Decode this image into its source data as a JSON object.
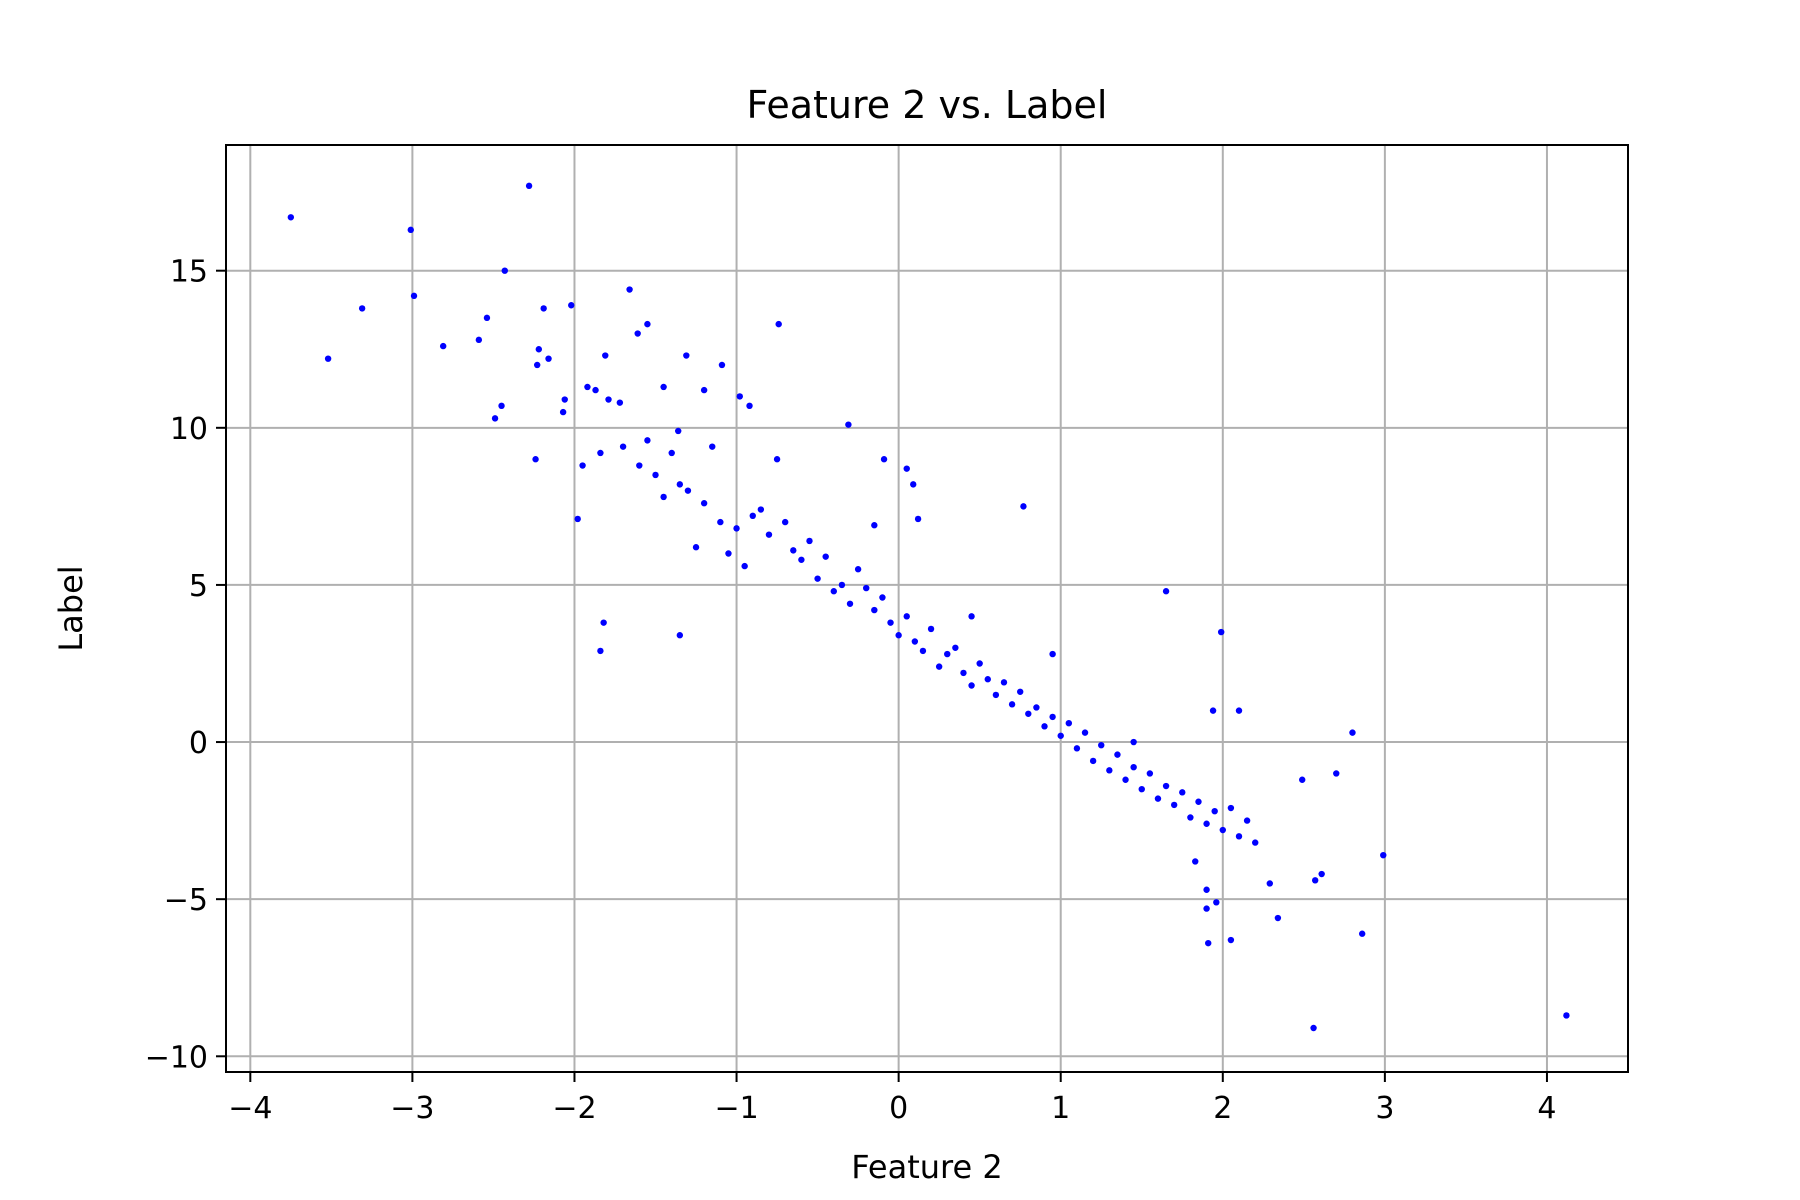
{
  "chart_data": {
    "type": "scatter",
    "title": "Feature 2 vs. Label",
    "xlabel": "Feature 2",
    "ylabel": "Label",
    "xlim": [
      -4.15,
      4.5
    ],
    "ylim": [
      -10.5,
      19
    ],
    "grid": true,
    "point_color": "#0000ff",
    "grid_color": "#b0b0b0",
    "x_ticks": [
      -4,
      -3,
      -2,
      -1,
      0,
      1,
      2,
      3,
      4
    ],
    "x_tick_labels": [
      "−4",
      "−3",
      "−2",
      "−1",
      "0",
      "1",
      "2",
      "3",
      "4"
    ],
    "y_ticks": [
      -10,
      -5,
      0,
      5,
      10,
      15
    ],
    "y_tick_labels": [
      "−10",
      "−5",
      "0",
      "5",
      "10",
      "15"
    ],
    "series": [
      {
        "x": [
          -3.75,
          -3.52,
          -3.31,
          -3.01,
          -2.99,
          -2.81,
          -2.59,
          -2.54,
          -2.49,
          -2.45,
          -2.43,
          -2.28,
          -2.24,
          -2.23,
          -2.22,
          -2.19,
          -2.16,
          -2.07,
          -2.06,
          -2.02,
          -1.98,
          -1.95,
          -1.92,
          -1.87,
          -1.84,
          -1.81,
          -1.79,
          -1.72,
          -1.66,
          -1.61,
          -1.55,
          -1.45,
          -1.36,
          -1.31,
          -1.2,
          -1.09,
          -0.98,
          -0.92,
          -0.74,
          -0.31,
          -0.09,
          0.05,
          0.09,
          0.12,
          0.77,
          1.65,
          1.99,
          1.94,
          2.1,
          2.8,
          2.7,
          2.99,
          4.12,
          2.56,
          2.86,
          2.57,
          2.34,
          1.91,
          2.05,
          2.49,
          2.61,
          2.29,
          1.9,
          1.83,
          1.9,
          1.96,
          -1.84,
          -1.82,
          -1.35
        ],
        "y": [
          16.7,
          12.2,
          13.8,
          16.3,
          14.2,
          12.6,
          12.8,
          13.5,
          10.3,
          10.7,
          15.0,
          17.7,
          9.0,
          12.0,
          12.5,
          13.8,
          12.2,
          10.5,
          10.9,
          13.9,
          7.1,
          8.8,
          11.3,
          11.2,
          9.2,
          12.3,
          10.9,
          10.8,
          14.4,
          13.0,
          13.3,
          11.3,
          9.9,
          12.3,
          11.2,
          12.0,
          11.0,
          10.7,
          13.3,
          10.1,
          9.0,
          8.7,
          8.2,
          7.1,
          7.5,
          4.8,
          3.5,
          1.0,
          1.0,
          0.3,
          -1.0,
          -3.6,
          -8.7,
          -9.1,
          -6.1,
          -4.4,
          -5.6,
          -6.4,
          -6.3,
          -1.2,
          -4.2,
          -4.5,
          -4.7,
          -3.8,
          -5.3,
          -5.1,
          2.9,
          3.8,
          3.4
        ]
      },
      {
        "x": [
          -1.5,
          -1.3,
          -1.2,
          -1.4,
          -1.1,
          -1.0,
          -0.9,
          -1.25,
          -1.05,
          -0.95,
          -0.85,
          -0.8,
          -0.7,
          -0.65,
          -0.6,
          -0.55,
          -0.5,
          -0.45,
          -0.4,
          -0.35,
          -0.3,
          -0.25,
          -0.2,
          -0.15,
          -0.1,
          -0.05,
          0.0,
          0.05,
          0.1,
          0.15,
          0.2,
          0.25,
          0.3,
          0.35,
          0.4,
          0.45,
          0.5,
          0.55,
          0.6,
          0.65,
          0.7,
          0.75,
          0.8,
          0.85,
          0.9,
          0.95,
          1.0,
          1.05,
          1.1,
          1.15,
          1.2,
          1.25,
          1.3,
          1.35,
          1.4,
          1.45,
          1.5,
          1.55,
          1.6,
          1.65,
          1.7,
          1.75,
          1.8,
          1.85,
          1.9,
          1.95,
          2.0,
          2.05,
          2.1,
          2.15,
          2.2,
          -1.7,
          -1.6,
          -1.55,
          -1.45,
          -1.35,
          -1.15,
          -0.75,
          -0.15,
          0.45,
          0.95,
          1.45
        ],
        "y": [
          8.5,
          8.0,
          7.6,
          9.2,
          7.0,
          6.8,
          7.2,
          6.2,
          6.0,
          5.6,
          7.4,
          6.6,
          7.0,
          6.1,
          5.8,
          6.4,
          5.2,
          5.9,
          4.8,
          5.0,
          4.4,
          5.5,
          4.9,
          4.2,
          4.6,
          3.8,
          3.4,
          4.0,
          3.2,
          2.9,
          3.6,
          2.4,
          2.8,
          3.0,
          2.2,
          1.8,
          2.5,
          2.0,
          1.5,
          1.9,
          1.2,
          1.6,
          0.9,
          1.1,
          0.5,
          0.8,
          0.2,
          0.6,
          -0.2,
          0.3,
          -0.6,
          -0.1,
          -0.9,
          -0.4,
          -1.2,
          -0.8,
          -1.5,
          -1.0,
          -1.8,
          -1.4,
          -2.0,
          -1.6,
          -2.4,
          -1.9,
          -2.6,
          -2.2,
          -2.8,
          -2.1,
          -3.0,
          -2.5,
          -3.2,
          9.4,
          8.8,
          9.6,
          7.8,
          8.2,
          9.4,
          9.0,
          6.9,
          4.0,
          2.8,
          0.0
        ]
      }
    ]
  }
}
